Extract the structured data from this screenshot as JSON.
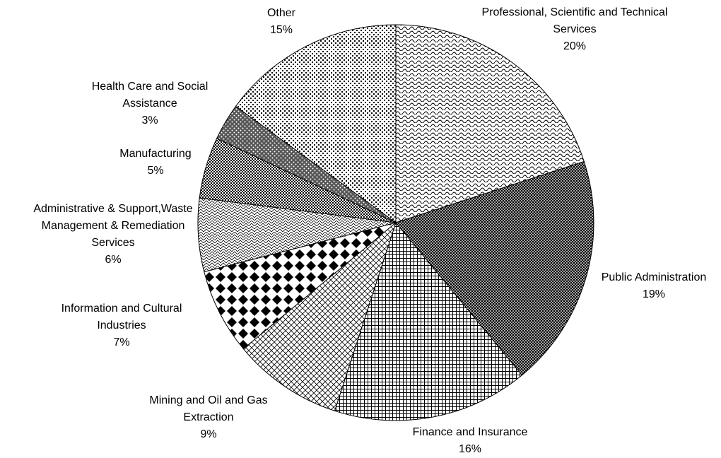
{
  "chart_data": {
    "type": "pie",
    "categories": [
      "Professional, Scientific and Technical Services",
      "Public Administration",
      "Finance and Insurance",
      "Mining and Oil and Gas Extraction",
      "Information and Cultural Industries",
      "Administrative & Support,Waste Management & Remediation Services",
      "Manufacturing",
      "Health Care and Social Assistance",
      "Other"
    ],
    "values": [
      20,
      19,
      16,
      9,
      7,
      6,
      5,
      3,
      15
    ],
    "value_labels": [
      "20%",
      "19%",
      "16%",
      "9%",
      "7%",
      "6%",
      "5%",
      "3%",
      "15%"
    ]
  }
}
